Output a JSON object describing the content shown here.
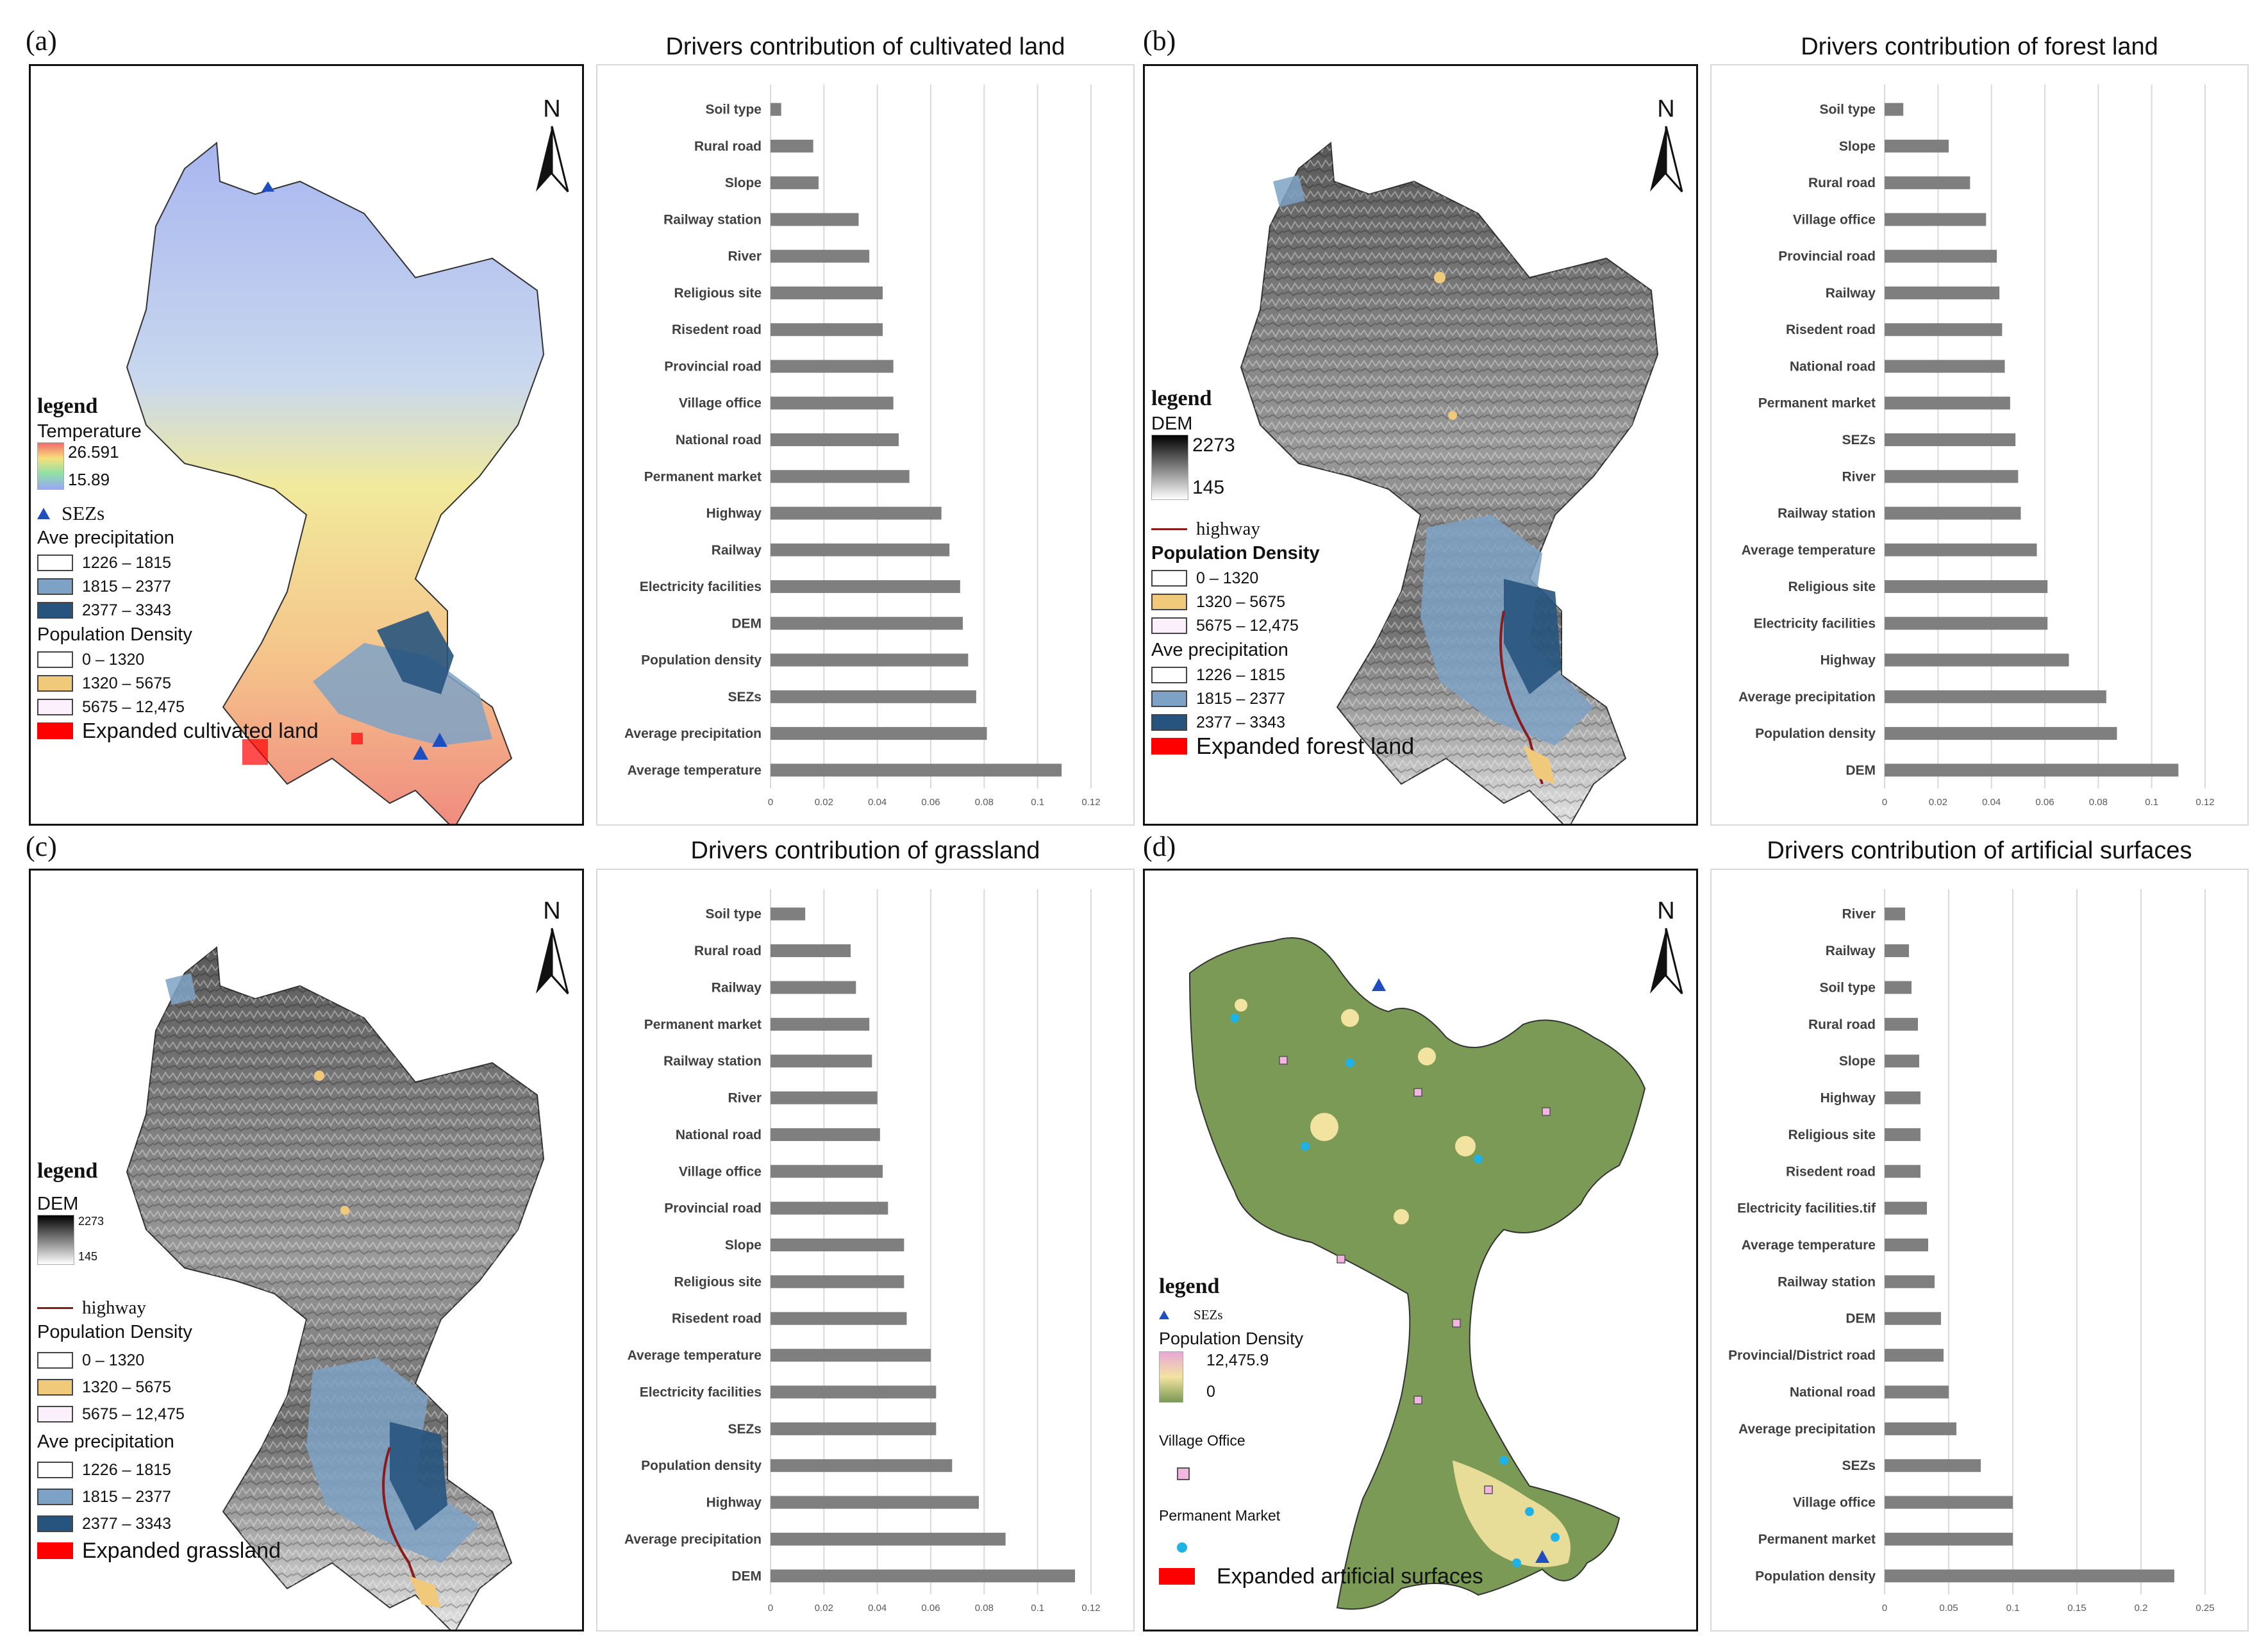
{
  "panel_labels": [
    "(a)",
    "(b)",
    "(c)",
    "(d)"
  ],
  "north_label": "N",
  "colors": {
    "bar": "#7f7f7f",
    "grid": "#d9d9d9",
    "sezs": "#1f4fbf",
    "expanded": "#ff0000",
    "highway": "#8b1a1a",
    "precip_low": "#ffffff",
    "precip_mid": "#7ea2c6",
    "precip_high": "#27547e",
    "pop_low": "#ffffff",
    "pop_mid": "#f0c97a",
    "pop_high": "#fbf0fb"
  },
  "legend_a": {
    "title": "legend",
    "temperature_label": "Temperature",
    "temp_max": "26.591",
    "temp_min": "15.89",
    "sezs_label": "SEZs",
    "precip_label": "Ave precipitation",
    "precip_classes": [
      "1226 – 1815",
      "1815 – 2377",
      "2377 – 3343"
    ],
    "pop_label": "Population Density",
    "pop_classes": [
      "0 – 1320",
      "1320 – 5675",
      "5675 – 12,475"
    ],
    "expanded_label": "Expanded cultivated land"
  },
  "legend_b": {
    "title": "legend",
    "dem_label": "DEM",
    "dem_max": "2273",
    "dem_min": "145",
    "highway_label": "highway",
    "pop_label": "Population Density",
    "pop_classes": [
      "0 – 1320",
      "1320 – 5675",
      "5675 – 12,475"
    ],
    "precip_label": "Ave precipitation",
    "precip_classes": [
      "1226 – 1815",
      "1815 – 2377",
      "2377 – 3343"
    ],
    "expanded_label": "Expanded forest land"
  },
  "legend_c": {
    "title": "legend",
    "dem_label": "DEM",
    "dem_max": "2273",
    "dem_min": "145",
    "highway_label": "highway",
    "pop_label": "Population Density",
    "pop_classes": [
      "0 – 1320",
      "1320 – 5675",
      "5675 – 12,475"
    ],
    "precip_label": "Ave precipitation",
    "precip_classes": [
      "1226 – 1815",
      "1815 – 2377",
      "2377 – 3343"
    ],
    "expanded_label": "Expanded grassland"
  },
  "legend_d": {
    "title": "legend",
    "sezs_label": "SEZs",
    "pop_label": "Population Density",
    "pop_max": "12,475.9",
    "pop_min": "0",
    "village_label": "Village Office",
    "market_label": "Permanent Market",
    "expanded_label": "Expanded artificial surfaces"
  },
  "chart_data": [
    {
      "type": "bar",
      "orientation": "horizontal",
      "title": "Drivers contribution of cultivated land",
      "categories": [
        "Soil type",
        "Rural road",
        "Slope",
        "Railway station",
        "River",
        "Religious site",
        "Risedent road",
        "Provincial road",
        "Village office",
        "National road",
        "Permanent market",
        "Highway",
        "Railway",
        "Electricity facilities",
        "DEM",
        "Population density",
        "SEZs",
        "Average precipitation",
        "Average temperature"
      ],
      "values": [
        0.004,
        0.016,
        0.018,
        0.033,
        0.037,
        0.042,
        0.042,
        0.046,
        0.046,
        0.048,
        0.052,
        0.064,
        0.067,
        0.071,
        0.072,
        0.074,
        0.077,
        0.081,
        0.109
      ],
      "ticks": [
        "0",
        "0.02",
        "0.04",
        "0.06",
        "0.08",
        "0.1",
        "0.12"
      ],
      "xlim": [
        0,
        0.12
      ],
      "grid": true
    },
    {
      "type": "bar",
      "orientation": "horizontal",
      "title": "Drivers contribution of forest land",
      "categories": [
        "Soil type",
        "Slope",
        "Rural road",
        "Village office",
        "Provincial road",
        "Railway",
        "Risedent road",
        "National road",
        "Permanent market",
        "SEZs",
        "River",
        "Railway station",
        "Average temperature",
        "Religious site",
        "Electricity facilities",
        "Highway",
        "Average precipitation",
        "Population density",
        "DEM"
      ],
      "values": [
        0.007,
        0.024,
        0.032,
        0.038,
        0.042,
        0.043,
        0.044,
        0.045,
        0.047,
        0.049,
        0.05,
        0.051,
        0.057,
        0.061,
        0.061,
        0.069,
        0.083,
        0.087,
        0.11
      ],
      "ticks": [
        "0",
        "0.02",
        "0.04",
        "0.06",
        "0.08",
        "0.1",
        "0.12"
      ],
      "xlim": [
        0,
        0.12
      ],
      "grid": true
    },
    {
      "type": "bar",
      "orientation": "horizontal",
      "title": "Drivers contribution of grassland",
      "categories": [
        "Soil type",
        "Rural road",
        "Railway",
        "Permanent market",
        "Railway station",
        "River",
        "National road",
        "Village office",
        "Provincial road",
        "Slope",
        "Religious site",
        "Risedent road",
        "Average temperature",
        "Electricity facilities",
        "SEZs",
        "Population density",
        "Highway",
        "Average precipitation",
        "DEM"
      ],
      "values": [
        0.013,
        0.03,
        0.032,
        0.037,
        0.038,
        0.04,
        0.041,
        0.042,
        0.044,
        0.05,
        0.05,
        0.051,
        0.06,
        0.062,
        0.062,
        0.068,
        0.078,
        0.088,
        0.114
      ],
      "ticks": [
        "0",
        "0.02",
        "0.04",
        "0.06",
        "0.08",
        "0.1",
        "0.12"
      ],
      "xlim": [
        0,
        0.12
      ],
      "grid": true
    },
    {
      "type": "bar",
      "orientation": "horizontal",
      "title": "Drivers contribution of artificial surfaces",
      "categories": [
        "River",
        "Railway",
        "Soil type",
        "Rural road",
        "Slope",
        "Highway",
        "Religious site",
        "Risedent road",
        "Electricity facilities.tif",
        "Average temperature",
        "Railway station",
        "DEM",
        "Provincial/District road",
        "National road",
        "Average precipitation",
        "SEZs",
        "Village office",
        "Permanent market",
        "Population density"
      ],
      "values": [
        0.016,
        0.019,
        0.021,
        0.026,
        0.027,
        0.028,
        0.028,
        0.028,
        0.033,
        0.034,
        0.039,
        0.044,
        0.046,
        0.05,
        0.056,
        0.075,
        0.1,
        0.1,
        0.226
      ],
      "ticks": [
        "0",
        "0.05",
        "0.1",
        "0.15",
        "0.2",
        "0.25"
      ],
      "xlim": [
        0,
        0.25
      ],
      "grid": true
    }
  ]
}
